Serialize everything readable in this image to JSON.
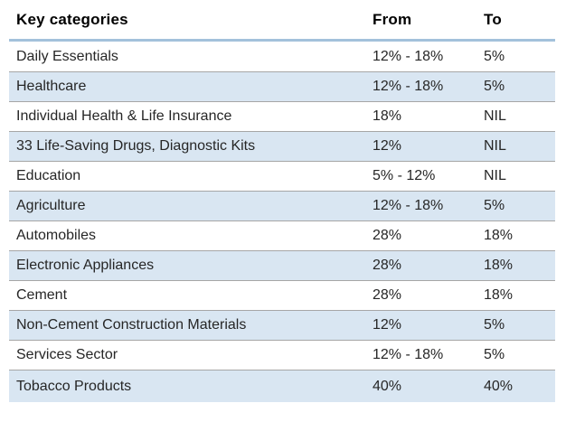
{
  "table": {
    "columns": [
      "Key categories",
      "From",
      "To"
    ],
    "rows": [
      {
        "category": "Daily Essentials",
        "from": "12% - 18%",
        "to": "5%"
      },
      {
        "category": "Healthcare",
        "from": "12% - 18%",
        "to": "5%"
      },
      {
        "category": "Individual Health & Life Insurance",
        "from": "18%",
        "to": "NIL"
      },
      {
        "category": "33 Life-Saving Drugs, Diagnostic Kits",
        "from": "12%",
        "to": "NIL"
      },
      {
        "category": "Education",
        "from": "5% - 12%",
        "to": "NIL"
      },
      {
        "category": "Agriculture",
        "from": "12% - 18%",
        "to": "5%"
      },
      {
        "category": "Automobiles",
        "from": "28%",
        "to": "18%"
      },
      {
        "category": "Electronic Appliances",
        "from": "28%",
        "to": "18%"
      },
      {
        "category": "Cement",
        "from": "28%",
        "to": "18%"
      },
      {
        "category": "Non-Cement Construction Materials",
        "from": "12%",
        "to": "5%"
      },
      {
        "category": "Services Sector",
        "from": "12% - 18%",
        "to": "5%"
      },
      {
        "category": "Tobacco Products",
        "from": "40%",
        "to": "40%"
      }
    ]
  },
  "colors": {
    "row_alt_background": "#d9e6f2",
    "header_rule": "#a3c1db",
    "row_divider": "#a6a6a6",
    "header_text": "#000000",
    "body_text": "#262626"
  }
}
